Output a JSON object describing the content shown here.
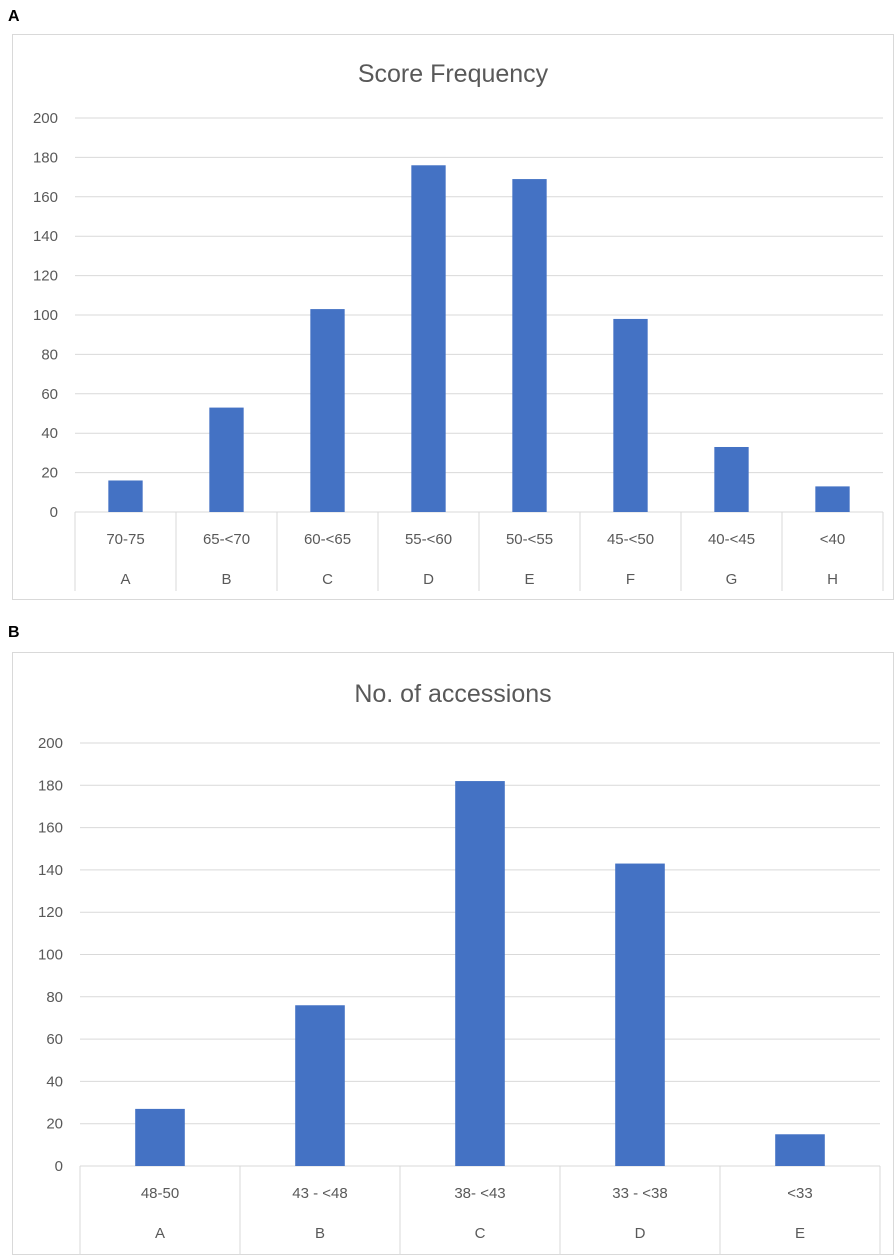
{
  "panels": [
    {
      "label": "A",
      "chart_data": {
        "type": "bar",
        "title": "Score Frequency",
        "xlabel": "",
        "ylabel": "",
        "ylim": [
          0,
          200
        ],
        "yticks": [
          0,
          20,
          40,
          60,
          80,
          100,
          120,
          140,
          160,
          180,
          200
        ],
        "grid": true,
        "legend": "none",
        "color": "#4472C4",
        "categories": [
          "70-75",
          "65-<70",
          "60-<65",
          "55-<60",
          "50-<55",
          "45-<50",
          "40-<45",
          "<40"
        ],
        "categories_outer": [
          "A",
          "B",
          "C",
          "D",
          "E",
          "F",
          "G",
          "H"
        ],
        "values": [
          16,
          53,
          103,
          176,
          169,
          98,
          33,
          13
        ]
      }
    },
    {
      "label": "B",
      "chart_data": {
        "type": "bar",
        "title": "No. of accessions",
        "xlabel": "",
        "ylabel": "",
        "ylim": [
          0,
          200
        ],
        "yticks": [
          0,
          20,
          40,
          60,
          80,
          100,
          120,
          140,
          160,
          180,
          200
        ],
        "grid": true,
        "legend": "none",
        "color": "#4472C4",
        "categories": [
          "48-50",
          "43 - <48",
          "38- <43",
          "33 - <38",
          "<33"
        ],
        "categories_outer": [
          "A",
          "B",
          "C",
          "D",
          "E"
        ],
        "values": [
          27,
          76,
          182,
          143,
          15
        ]
      }
    }
  ]
}
